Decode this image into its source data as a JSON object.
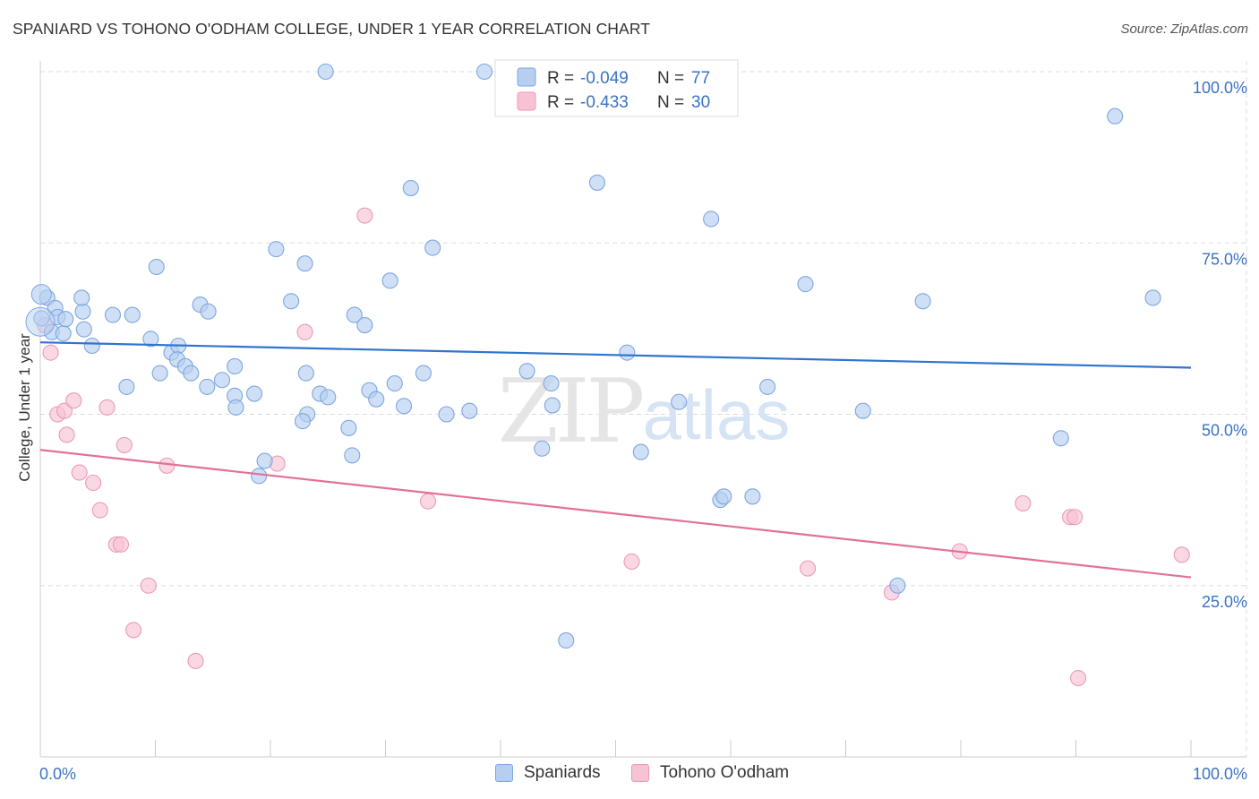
{
  "title": "SPANIARD VS TOHONO O'ODHAM COLLEGE, UNDER 1 YEAR CORRELATION CHART",
  "source": "Source: ZipAtlas.com",
  "watermark": {
    "zip": "ZIP",
    "atlas": "atlas"
  },
  "colors": {
    "blue_fill": "#b6cff1",
    "blue_stroke": "#7ea6de",
    "blue_line": "#2f74cf",
    "pink_fill": "#f7c3d4",
    "pink_stroke": "#eb9ab5",
    "pink_line": "#e2709a",
    "value_text": "#3a72c4",
    "grid": "#dddddd",
    "axis": "#cccccc"
  },
  "chart_data": {
    "type": "scatter",
    "title": "SPANIARD VS TOHONO O'ODHAM COLLEGE, UNDER 1 YEAR CORRELATION CHART",
    "xlabel": "",
    "ylabel": "College, Under 1 year",
    "xlim": [
      0,
      100
    ],
    "ylim": [
      0,
      100
    ],
    "x_tick_labels": [
      "0.0%",
      "100.0%"
    ],
    "y_tick_values": [
      25,
      50,
      75,
      100
    ],
    "y_tick_labels": [
      "25.0%",
      "50.0%",
      "75.0%",
      "100.0%"
    ],
    "legend_position": "top-center",
    "stats": [
      {
        "r_label": "R = ",
        "r_value": "-0.049",
        "n_label": "N = ",
        "n_value": "77"
      },
      {
        "r_label": "R = ",
        "r_value": "-0.433",
        "n_label": "N = ",
        "n_value": "30"
      }
    ],
    "series": [
      {
        "name": "Spaniards",
        "trend": [
          60.5,
          56.8
        ],
        "points": [
          [
            0.1,
            64.0
          ],
          [
            0.6,
            67.0
          ],
          [
            1.3,
            65.5
          ],
          [
            1.5,
            64.2
          ],
          [
            1.0,
            62.0
          ],
          [
            2.0,
            61.8
          ],
          [
            2.2,
            63.9
          ],
          [
            3.7,
            65.0
          ],
          [
            3.6,
            67.0
          ],
          [
            3.8,
            62.4
          ],
          [
            4.5,
            60.0
          ],
          [
            6.3,
            64.5
          ],
          [
            8.0,
            64.5
          ],
          [
            9.6,
            61.0
          ],
          [
            10.1,
            71.5
          ],
          [
            11.4,
            59.0
          ],
          [
            12.0,
            60.0
          ],
          [
            11.9,
            58.0
          ],
          [
            12.6,
            57.0
          ],
          [
            13.1,
            56.0
          ],
          [
            10.4,
            56.0
          ],
          [
            13.9,
            66.0
          ],
          [
            14.6,
            65.0
          ],
          [
            16.9,
            57.0
          ],
          [
            15.8,
            55.0
          ],
          [
            16.9,
            52.7
          ],
          [
            17.0,
            51.0
          ],
          [
            18.6,
            53.0
          ],
          [
            19.5,
            43.2
          ],
          [
            20.5,
            74.1
          ],
          [
            21.8,
            66.5
          ],
          [
            23.0,
            72.0
          ],
          [
            23.1,
            56.0
          ],
          [
            23.2,
            50.0
          ],
          [
            24.3,
            53.0
          ],
          [
            25.0,
            52.5
          ],
          [
            26.8,
            48.0
          ],
          [
            27.1,
            44.0
          ],
          [
            27.3,
            64.5
          ],
          [
            28.2,
            63.0
          ],
          [
            28.6,
            53.5
          ],
          [
            29.2,
            52.2
          ],
          [
            30.4,
            69.5
          ],
          [
            30.8,
            54.5
          ],
          [
            31.6,
            51.2
          ],
          [
            32.2,
            83.0
          ],
          [
            33.3,
            56.0
          ],
          [
            34.1,
            74.3
          ],
          [
            35.3,
            50.0
          ],
          [
            37.3,
            50.5
          ],
          [
            38.6,
            100.0
          ],
          [
            42.3,
            56.3
          ],
          [
            43.6,
            45.0
          ],
          [
            44.4,
            54.5
          ],
          [
            44.5,
            51.3
          ],
          [
            45.7,
            17.0
          ],
          [
            48.4,
            83.8
          ],
          [
            51.0,
            59.0
          ],
          [
            52.2,
            44.5
          ],
          [
            55.5,
            51.8
          ],
          [
            58.3,
            78.5
          ],
          [
            59.1,
            37.5
          ],
          [
            59.4,
            38.0
          ],
          [
            61.9,
            38.0
          ],
          [
            63.2,
            54.0
          ],
          [
            66.5,
            69.0
          ],
          [
            71.5,
            50.5
          ],
          [
            74.5,
            25.0
          ],
          [
            76.7,
            66.5
          ],
          [
            88.7,
            46.5
          ],
          [
            93.4,
            93.5
          ],
          [
            96.7,
            67.0
          ],
          [
            24.8,
            100.0
          ],
          [
            22.8,
            49.0
          ],
          [
            19.0,
            41.0
          ],
          [
            14.5,
            54.0
          ],
          [
            7.5,
            54.0
          ]
        ]
      },
      {
        "name": "Tohono O'odham",
        "trend": [
          44.8,
          26.2
        ],
        "points": [
          [
            0.4,
            63.0
          ],
          [
            0.9,
            59.0
          ],
          [
            1.5,
            50.0
          ],
          [
            2.1,
            50.5
          ],
          [
            2.3,
            47.0
          ],
          [
            2.9,
            52.0
          ],
          [
            3.4,
            41.5
          ],
          [
            4.6,
            40.0
          ],
          [
            5.2,
            36.0
          ],
          [
            5.8,
            51.0
          ],
          [
            6.6,
            31.0
          ],
          [
            7.0,
            31.0
          ],
          [
            7.3,
            45.5
          ],
          [
            8.1,
            18.5
          ],
          [
            9.4,
            25.0
          ],
          [
            11.0,
            42.5
          ],
          [
            13.5,
            14.0
          ],
          [
            20.6,
            42.8
          ],
          [
            23.0,
            62.0
          ],
          [
            28.2,
            79.0
          ],
          [
            33.7,
            37.3
          ],
          [
            51.4,
            28.5
          ],
          [
            66.7,
            27.5
          ],
          [
            74.0,
            24.0
          ],
          [
            79.9,
            30.0
          ],
          [
            85.4,
            37.0
          ],
          [
            89.5,
            35.0
          ],
          [
            89.9,
            35.0
          ],
          [
            90.2,
            11.5
          ],
          [
            99.2,
            29.5
          ]
        ]
      }
    ]
  }
}
